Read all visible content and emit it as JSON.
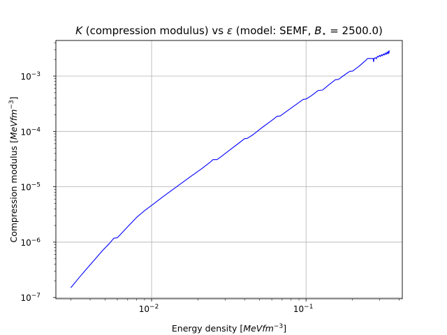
{
  "chart_data": {
    "type": "line",
    "title": "K (compression modulus) vs ε (model: SEMF, B⋆ = 2500.0)",
    "title_parts": {
      "k": "K",
      "middle": " (compression modulus) vs ",
      "eps": "ε",
      "model": " (model: SEMF, ",
      "b": "B",
      "star": "⋆",
      "eq": " = 2500.0)"
    },
    "xlabel": "Energy density [MeVfm⁻³]",
    "xlabel_parts": {
      "text": "Energy density [",
      "unit": "MeVfm",
      "exp": "−3",
      "close": "]"
    },
    "ylabel": "Compression modulus [MeVfm⁻³]",
    "ylabel_parts": {
      "text": "Compression modulus [",
      "unit": "MeVfm",
      "exp": "−3",
      "close": "]"
    },
    "xscale": "log",
    "yscale": "log",
    "xlim": [
      0.0024,
      0.42
    ],
    "ylim": [
      9.5e-08,
      0.0044
    ],
    "grid": true,
    "x_ticks": [
      {
        "value": 0.01,
        "base": "10",
        "exp": "−2"
      },
      {
        "value": 0.1,
        "base": "10",
        "exp": "−1"
      }
    ],
    "y_ticks": [
      {
        "value": 1e-07,
        "base": "10",
        "exp": "−7"
      },
      {
        "value": 1e-06,
        "base": "10",
        "exp": "−6"
      },
      {
        "value": 1e-05,
        "base": "10",
        "exp": "−5"
      },
      {
        "value": 0.0001,
        "base": "10",
        "exp": "−4"
      },
      {
        "value": 0.001,
        "base": "10",
        "exp": "−3"
      }
    ],
    "line_color": "#0000ff",
    "series": [
      {
        "points": [
          [
            0.003,
            1.5e-07
          ],
          [
            0.0034,
            2.3e-07
          ],
          [
            0.0038,
            3.3e-07
          ],
          [
            0.0043,
            4.9e-07
          ],
          [
            0.0048,
            7e-07
          ],
          [
            0.0053,
            9.3e-07
          ],
          [
            0.0057,
            1.18e-06
          ],
          [
            0.006,
            1.2e-06
          ],
          [
            0.0064,
            1.45e-06
          ],
          [
            0.007,
            1.9e-06
          ],
          [
            0.008,
            2.8e-06
          ],
          [
            0.009,
            3.7e-06
          ],
          [
            0.01,
            4.6e-06
          ],
          [
            0.012,
            6.8e-06
          ],
          [
            0.015,
            1.07e-05
          ],
          [
            0.018,
            1.55e-05
          ],
          [
            0.021,
            2.1e-05
          ],
          [
            0.024,
            2.8e-05
          ],
          [
            0.025,
            3.1e-05
          ],
          [
            0.0265,
            3.1e-05
          ],
          [
            0.028,
            3.45e-05
          ],
          [
            0.032,
            4.6e-05
          ],
          [
            0.036,
            5.9e-05
          ],
          [
            0.04,
            7.4e-05
          ],
          [
            0.0415,
            7.45e-05
          ],
          [
            0.045,
            8.6e-05
          ],
          [
            0.052,
            0.000118
          ],
          [
            0.06,
            0.000158
          ],
          [
            0.065,
            0.000188
          ],
          [
            0.068,
            0.00019
          ],
          [
            0.076,
            0.000238
          ],
          [
            0.086,
            0.000305
          ],
          [
            0.096,
            0.00038
          ],
          [
            0.1,
            0.000385
          ],
          [
            0.108,
            0.00044
          ],
          [
            0.12,
            0.00055
          ],
          [
            0.128,
            0.00056
          ],
          [
            0.14,
            0.00069
          ],
          [
            0.155,
            0.00086
          ],
          [
            0.162,
            0.00087
          ],
          [
            0.18,
            0.00108
          ],
          [
            0.192,
            0.00122
          ],
          [
            0.2,
            0.00123
          ],
          [
            0.22,
            0.0015
          ],
          [
            0.245,
            0.00195
          ],
          [
            0.25,
            0.00208
          ],
          [
            0.272,
            0.00208
          ],
          [
            0.274,
            0.00182
          ],
          [
            0.276,
            0.0021
          ],
          [
            0.282,
            0.00215
          ],
          [
            0.285,
            0.00205
          ],
          [
            0.29,
            0.00228
          ],
          [
            0.294,
            0.0022
          ],
          [
            0.299,
            0.00238
          ],
          [
            0.303,
            0.00225
          ],
          [
            0.308,
            0.00245
          ],
          [
            0.312,
            0.00232
          ],
          [
            0.317,
            0.00252
          ],
          [
            0.321,
            0.0024
          ],
          [
            0.326,
            0.00262
          ],
          [
            0.33,
            0.00245
          ],
          [
            0.335,
            0.00272
          ],
          [
            0.339,
            0.00252
          ],
          [
            0.342,
            0.00282
          ],
          [
            0.344,
            0.0026
          ],
          [
            0.346,
            0.0029
          ]
        ]
      }
    ]
  }
}
